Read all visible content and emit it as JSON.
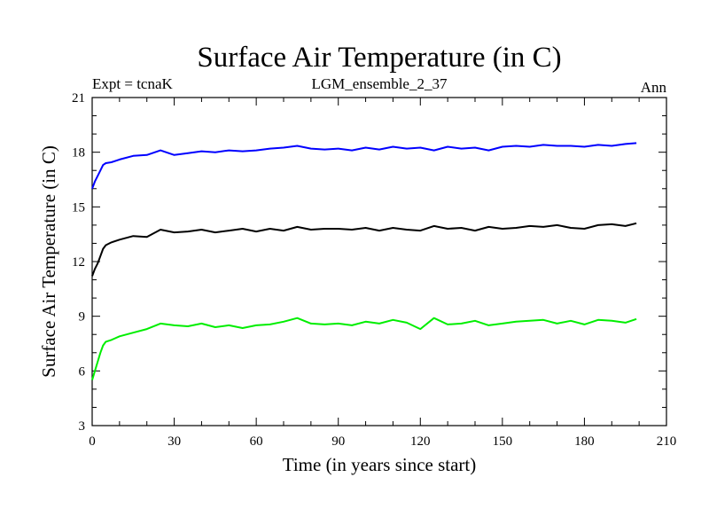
{
  "chart_data": {
    "type": "line",
    "title": "Surface Air Temperature (in C)",
    "subtitle_left": "Expt = tcnaK",
    "subtitle_center": "LGM_ensemble_2_37",
    "subtitle_right": "Ann",
    "xlabel": "Time (in years since start)",
    "ylabel": "Surface Air Temperature (in C)",
    "xlim": [
      0,
      210
    ],
    "ylim": [
      3,
      21
    ],
    "xticks": [
      0,
      30,
      60,
      90,
      120,
      150,
      180,
      210
    ],
    "yticks": [
      3,
      6,
      9,
      12,
      15,
      18,
      21
    ],
    "xtick_labels": [
      "0",
      "30",
      "60",
      "90",
      "120",
      "150",
      "180",
      "210"
    ],
    "ytick_labels": [
      "3",
      "6",
      "9",
      "12",
      "15",
      "18",
      "21"
    ],
    "x": [
      0,
      1,
      2,
      3,
      4,
      5,
      7,
      10,
      15,
      20,
      25,
      30,
      35,
      40,
      45,
      50,
      55,
      60,
      65,
      70,
      75,
      80,
      85,
      90,
      95,
      100,
      105,
      110,
      115,
      120,
      125,
      130,
      135,
      140,
      145,
      150,
      155,
      160,
      165,
      170,
      175,
      180,
      185,
      190,
      195,
      199
    ],
    "series": [
      {
        "name": "blue",
        "color": "#0000ff",
        "values": [
          16.0,
          16.4,
          16.7,
          17.0,
          17.3,
          17.4,
          17.45,
          17.6,
          17.8,
          17.85,
          18.1,
          17.85,
          17.95,
          18.05,
          18.0,
          18.1,
          18.05,
          18.1,
          18.2,
          18.25,
          18.35,
          18.2,
          18.15,
          18.2,
          18.1,
          18.25,
          18.15,
          18.3,
          18.2,
          18.25,
          18.1,
          18.3,
          18.2,
          18.25,
          18.1,
          18.3,
          18.35,
          18.3,
          18.4,
          18.35,
          18.35,
          18.3,
          18.4,
          18.35,
          18.45,
          18.5
        ]
      },
      {
        "name": "black",
        "color": "#000000",
        "values": [
          11.2,
          11.6,
          11.9,
          12.3,
          12.7,
          12.9,
          13.05,
          13.2,
          13.4,
          13.35,
          13.75,
          13.6,
          13.65,
          13.75,
          13.6,
          13.7,
          13.8,
          13.65,
          13.8,
          13.7,
          13.9,
          13.75,
          13.8,
          13.8,
          13.75,
          13.85,
          13.7,
          13.85,
          13.75,
          13.7,
          13.95,
          13.8,
          13.85,
          13.7,
          13.9,
          13.8,
          13.85,
          13.95,
          13.9,
          14.0,
          13.85,
          13.8,
          14.0,
          14.05,
          13.95,
          14.1
        ]
      },
      {
        "name": "green",
        "color": "#00ee00",
        "values": [
          5.5,
          6.0,
          6.5,
          7.0,
          7.4,
          7.6,
          7.7,
          7.9,
          8.1,
          8.3,
          8.6,
          8.5,
          8.45,
          8.6,
          8.4,
          8.5,
          8.35,
          8.5,
          8.55,
          8.7,
          8.9,
          8.6,
          8.55,
          8.6,
          8.5,
          8.7,
          8.6,
          8.8,
          8.65,
          8.3,
          8.9,
          8.55,
          8.6,
          8.75,
          8.5,
          8.6,
          8.7,
          8.75,
          8.8,
          8.6,
          8.75,
          8.55,
          8.8,
          8.75,
          8.65,
          8.85
        ]
      }
    ]
  }
}
